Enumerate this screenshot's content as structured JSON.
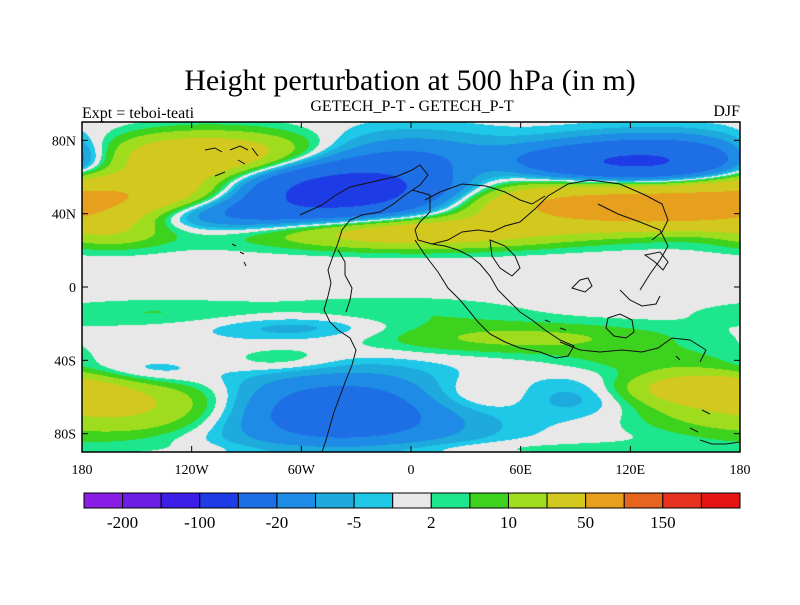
{
  "chart_data": {
    "type": "heatmap",
    "title": "Height perturbation at 500 hPa (in m)",
    "subtitle_left": "Expt = teboi-teati",
    "subtitle_center": "GETECH_P-T - GETECH_P-T",
    "subtitle_right": "DJF",
    "xlim": [
      -180,
      180
    ],
    "ylim": [
      -90,
      90
    ],
    "x_ticks": [
      {
        "value": -180,
        "label": "180"
      },
      {
        "value": -120,
        "label": "120W"
      },
      {
        "value": -60,
        "label": "60W"
      },
      {
        "value": 0,
        "label": "0"
      },
      {
        "value": 60,
        "label": "60E"
      },
      {
        "value": 120,
        "label": "120E"
      },
      {
        "value": 180,
        "label": "180"
      }
    ],
    "y_ticks": [
      {
        "value": 80,
        "label": "80N"
      },
      {
        "value": 40,
        "label": "40N"
      },
      {
        "value": 0,
        "label": "0"
      },
      {
        "value": -40,
        "label": "40S"
      },
      {
        "value": -80,
        "label": "80S"
      }
    ],
    "background_color": "#e8e8e8",
    "colorbar": {
      "colors": [
        "#8a1ee6",
        "#6a1ee6",
        "#3c1ee6",
        "#1e3ce6",
        "#1e6ee6",
        "#1e8ce6",
        "#1eaadc",
        "#1ec8e6",
        "#e8e8e8",
        "#1ee68c",
        "#3cd21e",
        "#a0dc1e",
        "#d2c81e",
        "#e6a01e",
        "#e6641e",
        "#e6321e",
        "#e61414"
      ],
      "labels": [
        {
          "index": 1,
          "label": "-200"
        },
        {
          "index": 3,
          "label": "-100"
        },
        {
          "index": 5,
          "label": "-20"
        },
        {
          "index": 7,
          "label": "-5"
        },
        {
          "index": 9,
          "label": "2"
        },
        {
          "index": 11,
          "label": "10"
        },
        {
          "index": 13,
          "label": "50"
        },
        {
          "index": 15,
          "label": "150"
        }
      ]
    },
    "anomalies": [
      {
        "lon": -160,
        "lat": 48,
        "sx": 50,
        "sy": 11,
        "value": 55
      },
      {
        "lon": -165,
        "lat": 30,
        "sx": 20,
        "sy": 6,
        "value": 12
      },
      {
        "lon": -130,
        "lat": 70,
        "sx": 45,
        "sy": 8,
        "value": 30
      },
      {
        "lon": -105,
        "lat": 75,
        "sx": 40,
        "sy": 8,
        "value": 15
      },
      {
        "lon": -115,
        "lat": 40,
        "sx": 42,
        "sy": 7,
        "value": -35
      },
      {
        "lon": -40,
        "lat": 52,
        "sx": 40,
        "sy": 10,
        "value": -70
      },
      {
        "lon": -2,
        "lat": 68,
        "sx": 35,
        "sy": 11,
        "value": -20
      },
      {
        "lon": 40,
        "lat": 65,
        "sx": 25,
        "sy": 7,
        "value": 12
      },
      {
        "lon": 0,
        "lat": 30,
        "sx": 55,
        "sy": 6,
        "value": 35
      },
      {
        "lon": 85,
        "lat": 45,
        "sx": 40,
        "sy": 8,
        "value": 45
      },
      {
        "lon": 140,
        "lat": 42,
        "sx": 40,
        "sy": 8,
        "value": 40
      },
      {
        "lon": 140,
        "lat": 68,
        "sx": 45,
        "sy": 9,
        "value": -55
      },
      {
        "lon": 80,
        "lat": 68,
        "sx": 40,
        "sy": 6,
        "value": -15
      },
      {
        "lon": 155,
        "lat": 30,
        "sx": 35,
        "sy": 5,
        "value": -6
      },
      {
        "lon": -140,
        "lat": -14,
        "sx": 45,
        "sy": 5,
        "value": 5
      },
      {
        "lon": -10,
        "lat": -14,
        "sx": 50,
        "sy": 6,
        "value": 5
      },
      {
        "lon": -60,
        "lat": -22,
        "sx": 35,
        "sy": 5,
        "value": -8
      },
      {
        "lon": 60,
        "lat": -28,
        "sx": 60,
        "sy": 6,
        "value": 12
      },
      {
        "lon": -70,
        "lat": -40,
        "sx": 22,
        "sy": 5,
        "value": 6
      },
      {
        "lon": -150,
        "lat": -48,
        "sx": 25,
        "sy": 6,
        "value": -8
      },
      {
        "lon": -155,
        "lat": -65,
        "sx": 50,
        "sy": 11,
        "value": 25
      },
      {
        "lon": -40,
        "lat": -68,
        "sx": 50,
        "sy": 14,
        "value": -35
      },
      {
        "lon": 30,
        "lat": -60,
        "sx": 25,
        "sy": 8,
        "value": 10
      },
      {
        "lon": 95,
        "lat": -60,
        "sx": 25,
        "sy": 8,
        "value": -8
      },
      {
        "lon": 160,
        "lat": -55,
        "sx": 30,
        "sy": 6,
        "value": 28
      },
      {
        "lon": 130,
        "lat": -40,
        "sx": 35,
        "sy": 5,
        "value": 6
      },
      {
        "lon": 20,
        "lat": -88,
        "sx": 110,
        "sy": 3,
        "value": 4
      }
    ]
  }
}
